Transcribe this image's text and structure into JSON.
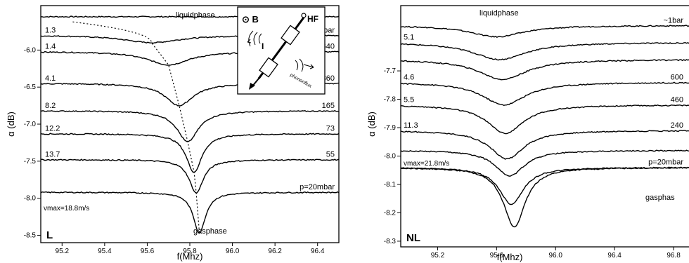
{
  "chart_data": [
    {
      "type": "line",
      "panel_tag": "L",
      "xlabel": "f(Mhz)",
      "ylabel": "α (dB)",
      "xlim": [
        95.1,
        96.5
      ],
      "ylim": [
        -8.6,
        -5.4
      ],
      "x_ticks": [
        "95.2",
        "95.4",
        "95.6",
        "95.8",
        "96.0",
        "96.2",
        "96.4"
      ],
      "y_ticks": [
        "-6.0",
        "-6.5",
        "-7.0",
        "-7.5",
        "-8.0",
        "-8.5"
      ],
      "y_tick_values": [
        -6.0,
        -6.5,
        -7.0,
        -7.5,
        -8.0,
        -8.5
      ],
      "top_label": "liquidphase",
      "bottom_label": "gasphase",
      "note": "vmax=18.8m/s",
      "dotted_curve": true,
      "inset": {
        "field_label": "⊙ B",
        "hf_label": "HF",
        "current_label": "I",
        "phonon_label": "phononflux"
      },
      "series": [
        {
          "left_label": "",
          "right_label": "",
          "baseline": -5.55,
          "center": 95.84,
          "depth": 0.0,
          "width": 0.1
        },
        {
          "left_label": "1.3",
          "right_label": "~1bar",
          "baseline": -5.8,
          "center": 95.62,
          "depth": 0.1,
          "width": 0.16
        },
        {
          "left_label": "1.4",
          "right_label": "640",
          "baseline": -6.02,
          "center": 95.7,
          "depth": 0.18,
          "width": 0.12
        },
        {
          "left_label": "4.1",
          "right_label": "360",
          "baseline": -6.45,
          "center": 95.75,
          "depth": 0.3,
          "width": 0.08
        },
        {
          "left_label": "8.2",
          "right_label": "165",
          "baseline": -6.82,
          "center": 95.79,
          "depth": 0.42,
          "width": 0.06
        },
        {
          "left_label": "12.2",
          "right_label": "73",
          "baseline": -7.13,
          "center": 95.82,
          "depth": 0.52,
          "width": 0.045
        },
        {
          "left_label": "13.7",
          "right_label": "55",
          "baseline": -7.48,
          "center": 95.83,
          "depth": 0.45,
          "width": 0.04
        },
        {
          "left_label": "",
          "right_label": "p=20mbar",
          "baseline": -7.92,
          "center": 95.845,
          "depth": 0.55,
          "width": 0.035
        }
      ]
    },
    {
      "type": "line",
      "panel_tag": "NL",
      "xlabel": "f(Mhz)",
      "ylabel": "α (dB)",
      "xlim": [
        94.95,
        97.0
      ],
      "ylim": [
        -8.32,
        -7.47
      ],
      "x_ticks": [
        "95.2",
        "95.6",
        "96.0",
        "96.4",
        "96.8"
      ],
      "y_ticks": [
        "-7.7",
        "-7.8",
        "-7.9",
        "-8.0",
        "-8.1",
        "-8.2",
        "-8.3"
      ],
      "y_tick_values": [
        -7.7,
        -7.8,
        -7.9,
        -8.0,
        -8.1,
        -8.2,
        -8.3
      ],
      "top_label": "liquidphase",
      "bottom_label": "gasphas",
      "note": "vmax=21.8m/s",
      "series": [
        {
          "left_label": "",
          "right_label": "~1bar",
          "baseline": -7.54,
          "center": 95.6,
          "depth": 0.04,
          "width": 0.22
        },
        {
          "left_label": "5.1",
          "right_label": "",
          "baseline": -7.6,
          "center": 95.62,
          "depth": 0.06,
          "width": 0.22
        },
        {
          "left_label": "",
          "right_label": "",
          "baseline": -7.66,
          "center": 95.64,
          "depth": 0.07,
          "width": 0.2
        },
        {
          "left_label": "4.6",
          "right_label": "600",
          "baseline": -7.74,
          "center": 95.65,
          "depth": 0.08,
          "width": 0.18
        },
        {
          "left_label": "5.5",
          "right_label": "460",
          "baseline": -7.82,
          "center": 95.66,
          "depth": 0.1,
          "width": 0.15
        },
        {
          "left_label": "11.3",
          "right_label": "240",
          "baseline": -7.91,
          "center": 95.67,
          "depth": 0.1,
          "width": 0.14
        },
        {
          "left_label": "",
          "right_label": "",
          "baseline": -7.98,
          "center": 95.69,
          "depth": 0.09,
          "width": 0.12
        },
        {
          "left_label": "",
          "right_label": "p=20mbar",
          "baseline": -8.04,
          "center": 95.7,
          "depth": 0.13,
          "width": 0.1
        },
        {
          "left_label": "",
          "right_label": "",
          "baseline": -8.04,
          "center": 95.72,
          "depth": 0.21,
          "width": 0.09
        }
      ]
    }
  ]
}
